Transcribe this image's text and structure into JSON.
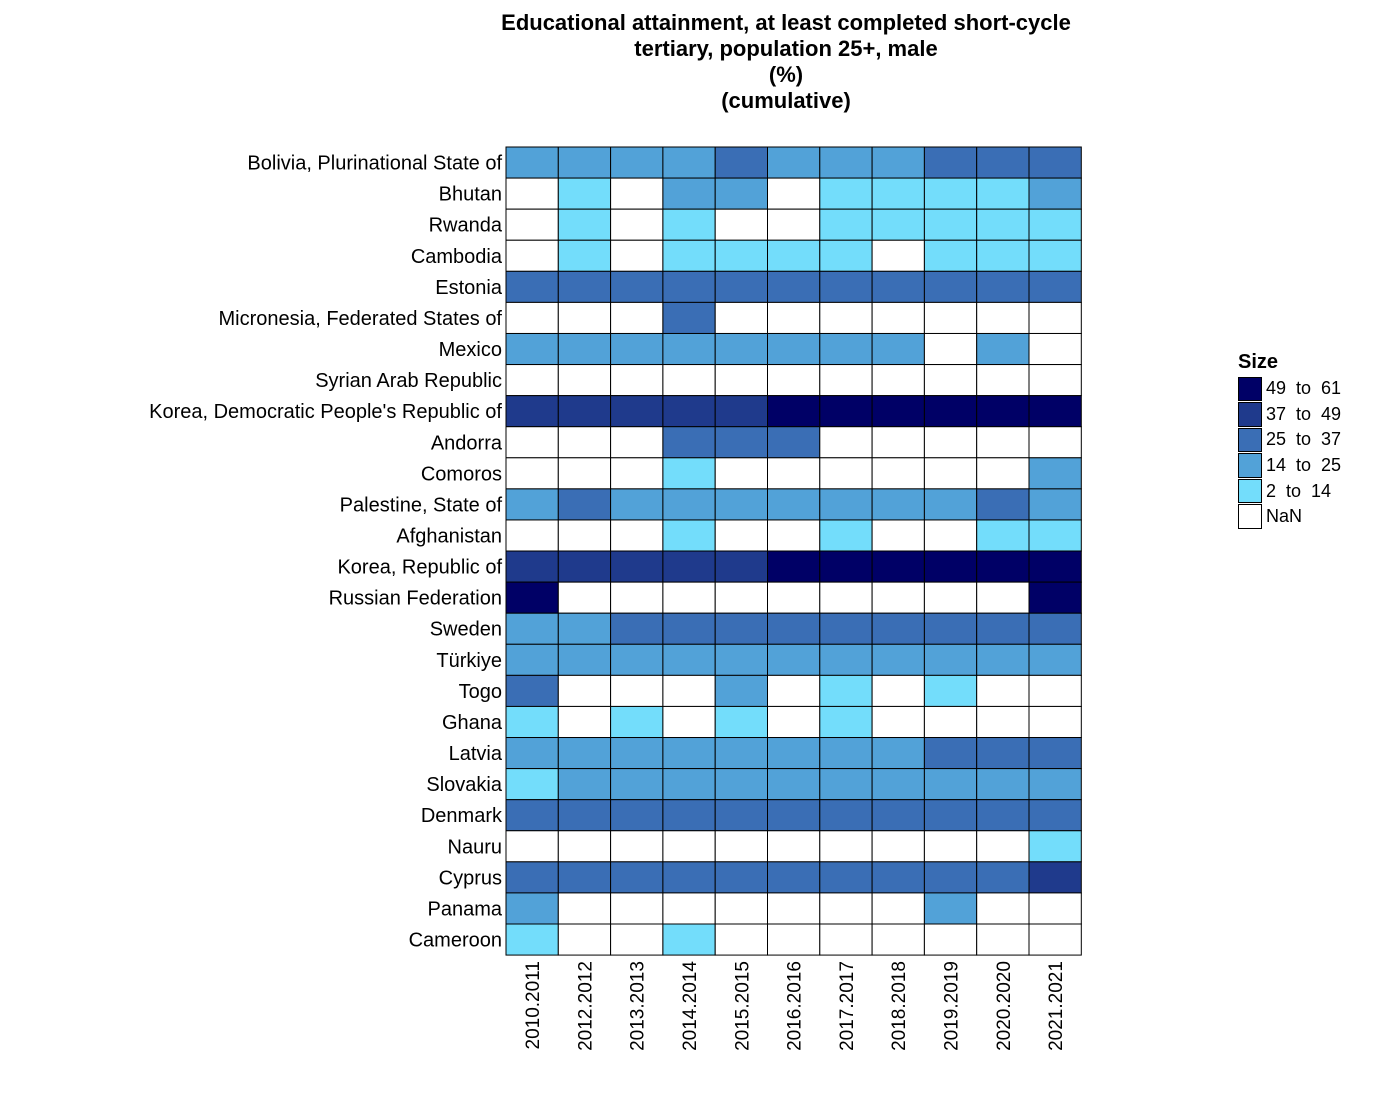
{
  "chart_data": {
    "type": "heatmap",
    "title": [
      "Educational attainment, at least completed short-cycle",
      "tertiary, population 25+, male",
      "(%)",
      "(cumulative)"
    ],
    "x_categories": [
      "2010.2011",
      "2012.2012",
      "2013.2013",
      "2014.2014",
      "2015.2015",
      "2016.2016",
      "2017.2017",
      "2018.2018",
      "2019.2019",
      "2020.2020",
      "2021.2021"
    ],
    "y_categories": [
      "Bolivia, Plurinational State of",
      "Bhutan",
      "Rwanda",
      "Cambodia",
      "Estonia",
      "Micronesia, Federated States of",
      "Mexico",
      "Syrian Arab Republic",
      "Korea, Democratic People's Republic of",
      "Andorra",
      "Comoros",
      "Palestine, State of",
      "Afghanistan",
      "Korea, Republic of",
      "Russian Federation",
      "Sweden",
      "Türkiye",
      "Togo",
      "Ghana",
      "Latvia",
      "Slovakia",
      "Denmark",
      "Nauru",
      "Cyprus",
      "Panama",
      "Cameroon"
    ],
    "bin_codes": "0 = NaN, 1 = 2 to 14, 2 = 14 to 25, 3 = 25 to 37, 4 = 37 to 49, 5 = 49 to 61",
    "cells": [
      [
        2,
        2,
        2,
        2,
        3,
        2,
        2,
        2,
        3,
        3,
        3
      ],
      [
        0,
        1,
        0,
        2,
        2,
        0,
        1,
        1,
        1,
        1,
        2
      ],
      [
        0,
        1,
        0,
        1,
        0,
        0,
        1,
        1,
        1,
        1,
        1
      ],
      [
        0,
        1,
        0,
        1,
        1,
        1,
        1,
        0,
        1,
        1,
        1
      ],
      [
        3,
        3,
        3,
        3,
        3,
        3,
        3,
        3,
        3,
        3,
        3
      ],
      [
        0,
        0,
        0,
        3,
        0,
        0,
        0,
        0,
        0,
        0,
        0
      ],
      [
        2,
        2,
        2,
        2,
        2,
        2,
        2,
        2,
        0,
        2,
        0
      ],
      [
        0,
        0,
        0,
        0,
        0,
        0,
        0,
        0,
        0,
        0,
        0
      ],
      [
        4,
        4,
        4,
        4,
        4,
        5,
        5,
        5,
        5,
        5,
        5
      ],
      [
        0,
        0,
        0,
        3,
        3,
        3,
        0,
        0,
        0,
        0,
        0
      ],
      [
        0,
        0,
        0,
        1,
        0,
        0,
        0,
        0,
        0,
        0,
        2
      ],
      [
        2,
        3,
        2,
        2,
        2,
        2,
        2,
        2,
        2,
        3,
        2
      ],
      [
        0,
        0,
        0,
        1,
        0,
        0,
        1,
        0,
        0,
        1,
        1
      ],
      [
        4,
        4,
        4,
        4,
        4,
        5,
        5,
        5,
        5,
        5,
        5
      ],
      [
        5,
        0,
        0,
        0,
        0,
        0,
        0,
        0,
        0,
        0,
        5
      ],
      [
        2,
        2,
        3,
        3,
        3,
        3,
        3,
        3,
        3,
        3,
        3
      ],
      [
        2,
        2,
        2,
        2,
        2,
        2,
        2,
        2,
        2,
        2,
        2
      ],
      [
        3,
        0,
        0,
        0,
        2,
        0,
        1,
        0,
        1,
        0,
        0
      ],
      [
        1,
        0,
        1,
        0,
        1,
        0,
        1,
        0,
        0,
        0,
        0
      ],
      [
        2,
        2,
        2,
        2,
        2,
        2,
        2,
        2,
        3,
        3,
        3
      ],
      [
        1,
        2,
        2,
        2,
        2,
        2,
        2,
        2,
        2,
        2,
        2
      ],
      [
        3,
        3,
        3,
        3,
        3,
        3,
        3,
        3,
        3,
        3,
        3
      ],
      [
        0,
        0,
        0,
        0,
        0,
        0,
        0,
        0,
        0,
        0,
        1
      ],
      [
        3,
        3,
        3,
        3,
        3,
        3,
        3,
        3,
        3,
        3,
        4
      ],
      [
        2,
        0,
        0,
        0,
        0,
        0,
        0,
        0,
        2,
        0,
        0
      ],
      [
        1,
        0,
        0,
        1,
        0,
        0,
        0,
        0,
        0,
        0,
        0
      ]
    ],
    "legend": {
      "title": "Size",
      "placement": "right",
      "entries": [
        {
          "label": "49  to  61",
          "color": "#000066"
        },
        {
          "label": "37  to  49",
          "color": "#1F3A8C"
        },
        {
          "label": "25  to  37",
          "color": "#3A6EB5"
        },
        {
          "label": "14  to  25",
          "color": "#52A2D8"
        },
        {
          "label": "2  to  14",
          "color": "#73DDFB"
        },
        {
          "label": "NaN",
          "color": "#FFFFFF"
        }
      ]
    },
    "bin_colors": [
      "#FFFFFF",
      "#73DDFB",
      "#52A2D8",
      "#3A6EB5",
      "#1F3A8C",
      "#000066"
    ]
  }
}
